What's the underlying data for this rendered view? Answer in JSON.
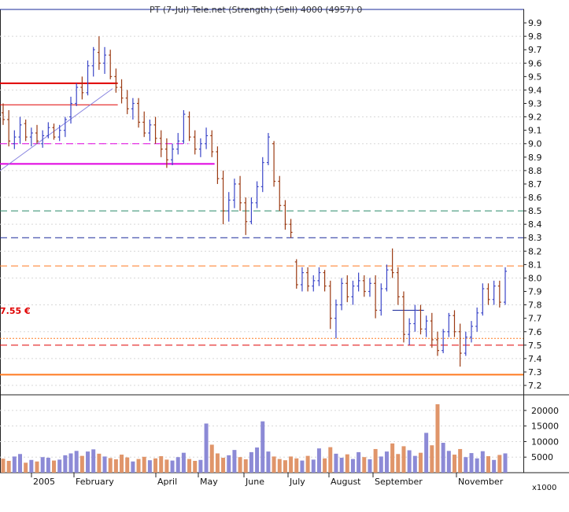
{
  "chart_data": {
    "type": "candlestick",
    "title": "PT (7-Jul) Tele.net (Strength) (Sell) 4000 (4957) 0",
    "price_axis": {
      "ylim": [
        7.13,
        10.0
      ],
      "ticks": [
        "7.2",
        "7.3",
        "7.4",
        "7.5",
        "7.6",
        "7.7",
        "7.8",
        "7.9",
        "8.0",
        "8.1",
        "8.2",
        "8.3",
        "8.4",
        "8.5",
        "8.6",
        "8.7",
        "8.8",
        "8.9",
        "9.0",
        "9.1",
        "9.2",
        "9.3",
        "9.4",
        "9.5",
        "9.6",
        "9.7",
        "9.8",
        "9.9"
      ]
    },
    "volume_axis": {
      "ylim": [
        0,
        22500
      ],
      "ticks": [
        "5000",
        "10000",
        "15000",
        "20000"
      ],
      "unit_label": "x1000"
    },
    "months": [
      "2005",
      "February",
      "April",
      "May",
      "June",
      "July",
      "August",
      "September",
      "November"
    ],
    "annotation": "7.55 €",
    "colors": {
      "up": "#3b46c8",
      "down": "#9b3a12",
      "vol_up": "#8c8ad6",
      "vol_down": "#e0956a",
      "red": "#e00000",
      "magenta": "#e000e0",
      "orange": "#ff7a20",
      "navy": "#1a2a9a",
      "teal": "#2a8a6a",
      "purple_trend": "#8a86e0"
    },
    "lines": [
      {
        "kind": "hline",
        "value": 9.45,
        "from": 0,
        "to": 0.225,
        "color": "red",
        "style": "solid",
        "width": 2
      },
      {
        "kind": "hline",
        "value": 9.29,
        "from": 0,
        "to": 0.225,
        "color": "red",
        "style": "solid",
        "width": 1
      },
      {
        "kind": "hline",
        "value": 9.0,
        "from": 0,
        "to": 0.36,
        "color": "magenta",
        "style": "dashed",
        "width": 1
      },
      {
        "kind": "hline",
        "value": 8.85,
        "from": 0,
        "to": 0.41,
        "color": "magenta",
        "style": "solid",
        "width": 2
      },
      {
        "kind": "hline",
        "value": 8.5,
        "from": 0,
        "to": 1,
        "color": "teal",
        "style": "dashed",
        "width": 1
      },
      {
        "kind": "hline",
        "value": 8.3,
        "from": 0,
        "to": 1,
        "color": "navy",
        "style": "dashed",
        "width": 1
      },
      {
        "kind": "hline",
        "value": 8.09,
        "from": 0,
        "to": 1,
        "color": "orange",
        "style": "dashed",
        "width": 1
      },
      {
        "kind": "hline",
        "value": 7.55,
        "from": 0,
        "to": 1,
        "color": "orange",
        "style": "dotted",
        "width": 1
      },
      {
        "kind": "hline",
        "value": 7.5,
        "from": 0,
        "to": 1,
        "color": "red",
        "style": "dashed",
        "width": 1
      },
      {
        "kind": "hline",
        "value": 7.28,
        "from": 0,
        "to": 1,
        "color": "orange",
        "style": "solid",
        "width": 2
      },
      {
        "kind": "hline",
        "value": 7.76,
        "from": 0.75,
        "to": 0.81,
        "color": "navy",
        "style": "solid",
        "width": 1
      },
      {
        "kind": "trend",
        "x0": 0,
        "y0": 8.8,
        "x1": 0.215,
        "y1": 9.41,
        "color": "purple_trend",
        "width": 1
      }
    ],
    "ohlc": [
      {
        "o": 9.23,
        "h": 9.3,
        "l": 9.14,
        "c": 9.18
      },
      {
        "o": 9.18,
        "h": 9.25,
        "l": 8.98,
        "c": 9.02
      },
      {
        "o": 9.0,
        "h": 9.1,
        "l": 8.96,
        "c": 9.05
      },
      {
        "o": 9.05,
        "h": 9.2,
        "l": 9.0,
        "c": 9.14
      },
      {
        "o": 9.15,
        "h": 9.18,
        "l": 9.02,
        "c": 9.05
      },
      {
        "o": 9.05,
        "h": 9.12,
        "l": 8.98,
        "c": 9.08
      },
      {
        "o": 9.08,
        "h": 9.14,
        "l": 9.0,
        "c": 9.02
      },
      {
        "o": 9.0,
        "h": 9.1,
        "l": 8.97,
        "c": 9.06
      },
      {
        "o": 9.06,
        "h": 9.16,
        "l": 9.04,
        "c": 9.12
      },
      {
        "o": 9.12,
        "h": 9.15,
        "l": 9.03,
        "c": 9.05
      },
      {
        "o": 9.05,
        "h": 9.14,
        "l": 9.02,
        "c": 9.1
      },
      {
        "o": 9.1,
        "h": 9.2,
        "l": 9.05,
        "c": 9.18
      },
      {
        "o": 9.2,
        "h": 9.35,
        "l": 9.15,
        "c": 9.3
      },
      {
        "o": 9.3,
        "h": 9.45,
        "l": 9.28,
        "c": 9.42
      },
      {
        "o": 9.42,
        "h": 9.5,
        "l": 9.33,
        "c": 9.38
      },
      {
        "o": 9.38,
        "h": 9.62,
        "l": 9.36,
        "c": 9.58
      },
      {
        "o": 9.58,
        "h": 9.72,
        "l": 9.5,
        "c": 9.7
      },
      {
        "o": 9.68,
        "h": 9.8,
        "l": 9.55,
        "c": 9.6
      },
      {
        "o": 9.6,
        "h": 9.72,
        "l": 9.52,
        "c": 9.66
      },
      {
        "o": 9.66,
        "h": 9.7,
        "l": 9.48,
        "c": 9.5
      },
      {
        "o": 9.5,
        "h": 9.56,
        "l": 9.38,
        "c": 9.42
      },
      {
        "o": 9.42,
        "h": 9.48,
        "l": 9.3,
        "c": 9.34
      },
      {
        "o": 9.34,
        "h": 9.4,
        "l": 9.22,
        "c": 9.26
      },
      {
        "o": 9.26,
        "h": 9.34,
        "l": 9.18,
        "c": 9.3
      },
      {
        "o": 9.3,
        "h": 9.34,
        "l": 9.12,
        "c": 9.16
      },
      {
        "o": 9.16,
        "h": 9.24,
        "l": 9.05,
        "c": 9.08
      },
      {
        "o": 9.08,
        "h": 9.18,
        "l": 9.02,
        "c": 9.14
      },
      {
        "o": 9.14,
        "h": 9.2,
        "l": 9.0,
        "c": 9.04
      },
      {
        "o": 9.04,
        "h": 9.1,
        "l": 8.9,
        "c": 8.96
      },
      {
        "o": 8.96,
        "h": 9.04,
        "l": 8.82,
        "c": 8.88
      },
      {
        "o": 8.88,
        "h": 9.0,
        "l": 8.84,
        "c": 8.96
      },
      {
        "o": 8.96,
        "h": 9.08,
        "l": 8.92,
        "c": 9.02
      },
      {
        "o": 9.02,
        "h": 9.25,
        "l": 9.0,
        "c": 9.22
      },
      {
        "o": 9.2,
        "h": 9.24,
        "l": 9.02,
        "c": 9.05
      },
      {
        "o": 9.05,
        "h": 9.1,
        "l": 8.92,
        "c": 8.96
      },
      {
        "o": 8.96,
        "h": 9.04,
        "l": 8.9,
        "c": 9.0
      },
      {
        "o": 9.0,
        "h": 9.12,
        "l": 8.96,
        "c": 9.06
      },
      {
        "o": 9.06,
        "h": 9.1,
        "l": 8.9,
        "c": 8.94
      },
      {
        "o": 8.94,
        "h": 8.98,
        "l": 8.7,
        "c": 8.74
      },
      {
        "o": 8.74,
        "h": 8.8,
        "l": 8.4,
        "c": 8.5
      },
      {
        "o": 8.5,
        "h": 8.64,
        "l": 8.42,
        "c": 8.58
      },
      {
        "o": 8.58,
        "h": 8.74,
        "l": 8.52,
        "c": 8.7
      },
      {
        "o": 8.7,
        "h": 8.76,
        "l": 8.5,
        "c": 8.56
      },
      {
        "o": 8.56,
        "h": 8.6,
        "l": 8.32,
        "c": 8.42
      },
      {
        "o": 8.42,
        "h": 8.6,
        "l": 8.4,
        "c": 8.56
      },
      {
        "o": 8.56,
        "h": 8.72,
        "l": 8.52,
        "c": 8.68
      },
      {
        "o": 8.68,
        "h": 8.9,
        "l": 8.64,
        "c": 8.86
      },
      {
        "o": 8.86,
        "h": 9.08,
        "l": 8.84,
        "c": 9.05
      },
      {
        "o": 9.0,
        "h": 9.02,
        "l": 8.68,
        "c": 8.72
      },
      {
        "o": 8.72,
        "h": 8.76,
        "l": 8.5,
        "c": 8.54
      },
      {
        "o": 8.54,
        "h": 8.58,
        "l": 8.36,
        "c": 8.4
      },
      {
        "o": 8.4,
        "h": 8.44,
        "l": 8.3,
        "c": 8.34
      },
      {
        "o": 8.12,
        "h": 8.14,
        "l": 7.92,
        "c": 7.95
      },
      {
        "o": 7.95,
        "h": 8.08,
        "l": 7.9,
        "c": 8.04
      },
      {
        "o": 8.04,
        "h": 8.08,
        "l": 7.9,
        "c": 7.94
      },
      {
        "o": 7.94,
        "h": 8.02,
        "l": 7.9,
        "c": 7.98
      },
      {
        "o": 7.98,
        "h": 8.08,
        "l": 7.94,
        "c": 8.04
      },
      {
        "o": 8.04,
        "h": 8.06,
        "l": 7.9,
        "c": 7.94
      },
      {
        "o": 7.94,
        "h": 7.98,
        "l": 7.62,
        "c": 7.7
      },
      {
        "o": 7.7,
        "h": 7.84,
        "l": 7.55,
        "c": 7.8
      },
      {
        "o": 7.8,
        "h": 8.0,
        "l": 7.76,
        "c": 7.96
      },
      {
        "o": 7.96,
        "h": 8.02,
        "l": 7.82,
        "c": 7.86
      },
      {
        "o": 7.86,
        "h": 7.98,
        "l": 7.8,
        "c": 7.94
      },
      {
        "o": 7.94,
        "h": 8.04,
        "l": 7.9,
        "c": 7.98
      },
      {
        "o": 7.98,
        "h": 8.02,
        "l": 7.86,
        "c": 7.9
      },
      {
        "o": 7.9,
        "h": 8.0,
        "l": 7.86,
        "c": 7.96
      },
      {
        "o": 7.96,
        "h": 8.02,
        "l": 7.7,
        "c": 7.76
      },
      {
        "o": 7.76,
        "h": 7.96,
        "l": 7.72,
        "c": 7.92
      },
      {
        "o": 7.92,
        "h": 8.1,
        "l": 7.9,
        "c": 8.06
      },
      {
        "o": 8.06,
        "h": 8.22,
        "l": 8.0,
        "c": 8.04
      },
      {
        "o": 8.04,
        "h": 8.08,
        "l": 7.8,
        "c": 7.86
      },
      {
        "o": 7.86,
        "h": 7.9,
        "l": 7.52,
        "c": 7.58
      },
      {
        "o": 7.58,
        "h": 7.7,
        "l": 7.5,
        "c": 7.66
      },
      {
        "o": 7.66,
        "h": 7.8,
        "l": 7.6,
        "c": 7.76
      },
      {
        "o": 7.76,
        "h": 7.8,
        "l": 7.58,
        "c": 7.62
      },
      {
        "o": 7.62,
        "h": 7.72,
        "l": 7.56,
        "c": 7.68
      },
      {
        "o": 7.68,
        "h": 7.74,
        "l": 7.48,
        "c": 7.54
      },
      {
        "o": 7.54,
        "h": 7.6,
        "l": 7.42,
        "c": 7.46
      },
      {
        "o": 7.46,
        "h": 7.62,
        "l": 7.44,
        "c": 7.6
      },
      {
        "o": 7.6,
        "h": 7.74,
        "l": 7.56,
        "c": 7.72
      },
      {
        "o": 7.72,
        "h": 7.76,
        "l": 7.56,
        "c": 7.6
      },
      {
        "o": 7.6,
        "h": 7.66,
        "l": 7.34,
        "c": 7.44
      },
      {
        "o": 7.44,
        "h": 7.6,
        "l": 7.42,
        "c": 7.56
      },
      {
        "o": 7.56,
        "h": 7.68,
        "l": 7.52,
        "c": 7.64
      },
      {
        "o": 7.64,
        "h": 7.78,
        "l": 7.6,
        "c": 7.74
      },
      {
        "o": 7.74,
        "h": 7.96,
        "l": 7.72,
        "c": 7.92
      },
      {
        "o": 7.92,
        "h": 7.96,
        "l": 7.8,
        "c": 7.84
      },
      {
        "o": 7.84,
        "h": 7.98,
        "l": 7.8,
        "c": 7.94
      },
      {
        "o": 7.94,
        "h": 7.98,
        "l": 7.78,
        "c": 7.82
      },
      {
        "o": 7.82,
        "h": 8.08,
        "l": 7.8,
        "c": 8.05
      }
    ],
    "volume": [
      4500,
      3800,
      5200,
      6000,
      3200,
      4100,
      3600,
      5000,
      4800,
      3900,
      4200,
      5600,
      6200,
      7000,
      5400,
      6800,
      7500,
      6100,
      5200,
      4700,
      4300,
      5800,
      4900,
      3600,
      4400,
      5100,
      4000,
      4600,
      5300,
      4200,
      3900,
      5000,
      6400,
      4400,
      3800,
      4100,
      15800,
      9000,
      6200,
      4800,
      5600,
      7300,
      5000,
      4300,
      6600,
      8100,
      16500,
      6800,
      5200,
      4400,
      4000,
      5200,
      4600,
      3900,
      5400,
      4200,
      7800,
      4600,
      8200,
      6100,
      4800,
      5900,
      4400,
      6600,
      5000,
      4300,
      7600,
      5200,
      6800,
      9400,
      6000,
      8500,
      7200,
      5400,
      6400,
      12800,
      8800,
      22000,
      9600,
      7000,
      5800,
      7600,
      5000,
      6300,
      4600,
      6900,
      5300,
      4100,
      5700,
      6200
    ]
  }
}
